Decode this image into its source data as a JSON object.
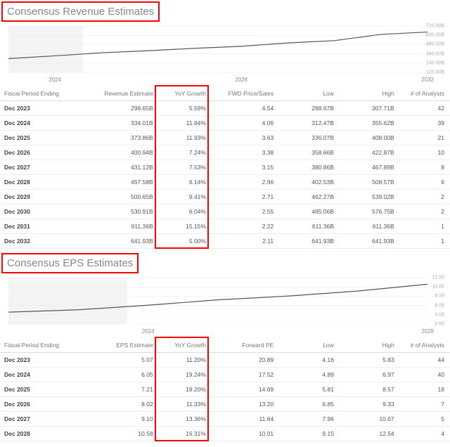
{
  "revenue_section": {
    "title": "Consensus Revenue Estimates",
    "chart": {
      "type": "line",
      "line_color": "#555555",
      "grid_color": "#e8e8e8",
      "shade_color": "#f4f4f4",
      "background_color": "#ffffff",
      "x_years": [
        2023,
        2024,
        2025,
        2026,
        2027,
        2028,
        2029,
        2030,
        2031,
        2032
      ],
      "x_ticks": [
        {
          "year": 2024,
          "label": "2024"
        },
        {
          "year": 2028,
          "label": "2028"
        },
        {
          "year": 2032,
          "label": "2032"
        }
      ],
      "y_min": 120,
      "y_max": 720,
      "y_step": 120,
      "y_labels": [
        "720.00B",
        "600.00B",
        "480.00B",
        "360.00B",
        "240.00B",
        "120.00B"
      ],
      "values": [
        298.65,
        334.01,
        373.86,
        400.94,
        431.12,
        457.58,
        500.65,
        530.91,
        611.36,
        641.93
      ],
      "shade_x_end_year": 2024.6
    },
    "columns": [
      "Fiscal Period Ending",
      "Revenue Estimate",
      "YoY Growth",
      "FWD Price/Sales",
      "Low",
      "High",
      "# of Analysts"
    ],
    "col_widths": [
      "120px",
      "92px",
      "72px",
      "92px",
      "82px",
      "82px",
      "72px"
    ],
    "rows": [
      [
        "Dec 2023",
        "298.65B",
        "5.59%",
        "4.54",
        "288.67B",
        "307.71B",
        "42"
      ],
      [
        "Dec 2024",
        "334.01B",
        "11.84%",
        "4.06",
        "312.47B",
        "355.62B",
        "39"
      ],
      [
        "Dec 2025",
        "373.86B",
        "11.93%",
        "3.63",
        "336.07B",
        "408.00B",
        "21"
      ],
      [
        "Dec 2026",
        "400.94B",
        "7.24%",
        "3.38",
        "358.66B",
        "422.87B",
        "10"
      ],
      [
        "Dec 2027",
        "431.12B",
        "7.53%",
        "3.15",
        "380.86B",
        "467.89B",
        "8"
      ],
      [
        "Dec 2028",
        "457.58B",
        "6.14%",
        "2.96",
        "402.53B",
        "508.57B",
        "6"
      ],
      [
        "Dec 2029",
        "500.65B",
        "9.41%",
        "2.71",
        "462.27B",
        "539.02B",
        "2"
      ],
      [
        "Dec 2030",
        "530.91B",
        "6.04%",
        "2.55",
        "485.06B",
        "576.75B",
        "2"
      ],
      [
        "Dec 2031",
        "611.36B",
        "15.15%",
        "2.22",
        "611.36B",
        "611.36B",
        "1"
      ],
      [
        "Dec 2032",
        "641.93B",
        "5.00%",
        "2.11",
        "641.93B",
        "641.93B",
        "1"
      ]
    ],
    "highlight_col_index": 2
  },
  "eps_section": {
    "title": "Consensus EPS Estimates",
    "chart": {
      "type": "line",
      "line_color": "#555555",
      "grid_color": "#e8e8e8",
      "shade_color": "#f4f4f4",
      "background_color": "#ffffff",
      "x_years": [
        2022,
        2023,
        2024,
        2025,
        2026,
        2027,
        2028
      ],
      "x_ticks": [
        {
          "year": 2024,
          "label": "2024"
        },
        {
          "year": 2028,
          "label": "2028"
        }
      ],
      "y_min": 2,
      "y_max": 12,
      "y_step": 2,
      "y_labels": [
        "12.00",
        "10.00",
        "8.00",
        "6.00",
        "4.00",
        "2.00"
      ],
      "values": [
        4.56,
        5.07,
        6.05,
        7.21,
        8.02,
        9.1,
        10.58
      ],
      "shade_x_end_year": 2023.7
    },
    "columns": [
      "Fiscal Period Ending",
      "EPS Estimate",
      "YoY Growth",
      "Forward PE",
      "Low",
      "High",
      "# of Analysts"
    ],
    "col_widths": [
      "120px",
      "92px",
      "72px",
      "92px",
      "82px",
      "82px",
      "72px"
    ],
    "rows": [
      [
        "Dec 2023",
        "5.07",
        "11.20%",
        "20.89",
        "4.16",
        "5.83",
        "44"
      ],
      [
        "Dec 2024",
        "6.05",
        "19.24%",
        "17.52",
        "4.89",
        "6.97",
        "40"
      ],
      [
        "Dec 2025",
        "7.21",
        "19.20%",
        "14.69",
        "5.81",
        "8.57",
        "18"
      ],
      [
        "Dec 2026",
        "8.02",
        "11.33%",
        "13.20",
        "6.85",
        "9.33",
        "7"
      ],
      [
        "Dec 2027",
        "9.10",
        "13.36%",
        "11.64",
        "7.96",
        "10.67",
        "5"
      ],
      [
        "Dec 2028",
        "10.58",
        "16.31%",
        "10.01",
        "9.15",
        "12.54",
        "4"
      ]
    ],
    "highlight_col_index": 2
  },
  "highlight_color": "#ff0000"
}
